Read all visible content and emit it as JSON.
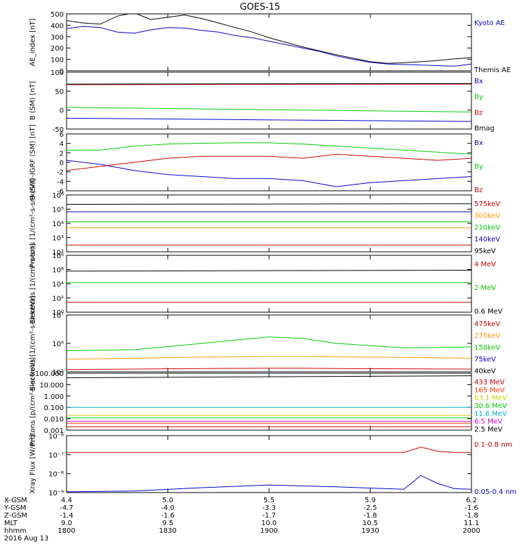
{
  "title": "GOES-15",
  "footer": {
    "rows": [
      {
        "label": "X-GSM",
        "values": [
          "4.4",
          "5.0",
          "5.5",
          "5.9",
          "6.2"
        ]
      },
      {
        "label": "Y-GSM",
        "values": [
          "-4.7",
          "-4.0",
          "-3.3",
          "-2.5",
          "-1.6"
        ]
      },
      {
        "label": "Z-GSM",
        "values": [
          "-1.4",
          "-1.6",
          "-1.7",
          "-1.8",
          "-1.8"
        ]
      },
      {
        "label": "MLT",
        "values": [
          "9.0",
          "9.5",
          "10.0",
          "10.5",
          "11.1"
        ]
      },
      {
        "label": "hhmm",
        "values": [
          "1800",
          "1830",
          "1900",
          "1930",
          "2000"
        ]
      }
    ],
    "date": "2016 Aug 13"
  },
  "chart_data": [
    {
      "type": "line",
      "ylabel": "AE_index [nT]",
      "ylim": [
        0,
        500
      ],
      "yticks": [
        "0",
        "100",
        "200",
        "300",
        "400",
        "500"
      ],
      "x": [
        0,
        5,
        10,
        15,
        20,
        25,
        30,
        35,
        40,
        45,
        50,
        55,
        60,
        65,
        70,
        75,
        80,
        85,
        90,
        95,
        100,
        105,
        110,
        115,
        120
      ],
      "series": [
        {
          "name": "Kyoto AE",
          "color": "#0000cc",
          "values": [
            370,
            390,
            380,
            340,
            330,
            360,
            380,
            375,
            355,
            340,
            310,
            290,
            260,
            230,
            200,
            170,
            130,
            100,
            75,
            60,
            55,
            50,
            45,
            40,
            60
          ]
        },
        {
          "name": "Themis AE",
          "color": "#000000",
          "values": [
            440,
            420,
            410,
            480,
            510,
            450,
            470,
            490,
            460,
            420,
            380,
            340,
            290,
            250,
            210,
            175,
            140,
            110,
            80,
            65,
            70,
            80,
            90,
            105,
            115
          ]
        }
      ]
    },
    {
      "type": "line",
      "ylabel": "B (SM) [nT]",
      "ylim": [
        -60,
        150
      ],
      "yticks": [
        "-50",
        "0",
        "50",
        "100"
      ],
      "x": [
        0,
        120
      ],
      "series": [
        {
          "name": "Bx",
          "color": "#0000cc",
          "values": [
            -20,
            -32
          ]
        },
        {
          "name": "By",
          "color": "#00cc00",
          "values": [
            20,
            3
          ]
        },
        {
          "name": "Bz",
          "color": "#cc0000",
          "values": [
            104,
            106
          ]
        },
        {
          "name": "Bmag",
          "color": "#000000",
          "values": [
            106,
            108
          ]
        }
      ]
    },
    {
      "type": "line",
      "ylabel": "B (SM)-IGRF (SM) [nT]",
      "ylim": [
        -7,
        7
      ],
      "yticks": [
        "-6",
        "-4",
        "-2",
        "0",
        "2",
        "4",
        "6"
      ],
      "x": [
        0,
        10,
        20,
        30,
        40,
        50,
        60,
        70,
        80,
        90,
        100,
        110,
        120
      ],
      "series": [
        {
          "name": "Bx",
          "color": "#0000cc",
          "values": [
            0.5,
            -0.5,
            -2,
            -3,
            -3.5,
            -4,
            -4,
            -4.5,
            -6,
            -5,
            -4.5,
            -4,
            -3.5
          ]
        },
        {
          "name": "By",
          "color": "#00cc00",
          "values": [
            3,
            3,
            4,
            4.5,
            4.7,
            4.8,
            4.8,
            4.5,
            4,
            3.5,
            3,
            2.5,
            2
          ]
        },
        {
          "name": "Bz",
          "color": "#cc0000",
          "values": [
            -2,
            -1,
            0,
            1,
            1.5,
            1.5,
            1.5,
            1,
            2,
            1.5,
            1,
            0.5,
            1
          ]
        }
      ]
    },
    {
      "type": "line",
      "ylabel": "Protons [1/(cm²-s-sr-keV)]",
      "yscale": "log",
      "ylim": [
        100,
        1000000
      ],
      "yticks": [
        "10²",
        "10³",
        "10⁴",
        "10⁵",
        "10⁶"
      ],
      "x": [
        0,
        120
      ],
      "series": [
        {
          "name": "575keV",
          "color": "#cc0000",
          "values": [
            300,
            300
          ]
        },
        {
          "name": "300keV",
          "color": "#ff9900",
          "values": [
            5000,
            5000
          ]
        },
        {
          "name": "210keV",
          "color": "#00cc00",
          "values": [
            13000,
            13000
          ]
        },
        {
          "name": "140keV",
          "color": "#0000cc",
          "values": [
            65000,
            65000
          ]
        },
        {
          "name": "95keV",
          "color": "#000000",
          "values": [
            220000,
            240000
          ]
        }
      ]
    },
    {
      "type": "line",
      "ylabel": "Electrons [1/(cm²-s-sr)]",
      "yscale": "log",
      "ylim": [
        1,
        100000000
      ],
      "yticks": [
        "10⁰",
        "10²",
        "10⁴",
        "10⁶",
        "10⁸"
      ],
      "x": [
        0,
        120
      ],
      "series": [
        {
          "name": "4 MeV",
          "color": "#cc0000",
          "values": [
            25,
            25
          ]
        },
        {
          "name": "2 MeV",
          "color": "#00cc00",
          "values": [
            15000,
            15000
          ]
        },
        {
          "name": "0.6 MeV",
          "color": "#000000",
          "values": [
            600000,
            800000
          ]
        }
      ]
    },
    {
      "type": "line",
      "ylabel": "Electrons [1/(cm²-s-sr-keV)]",
      "yscale": "log",
      "ylim": [
        100000,
        10000000
      ],
      "yticks": [
        "10⁵",
        "10⁶",
        "10⁷"
      ],
      "x": [
        0,
        20,
        40,
        60,
        70,
        80,
        100,
        120
      ],
      "series": [
        {
          "name": "475keV",
          "color": "#cc0000",
          "values": [
            120000,
            125000,
            130000,
            135000,
            135000,
            130000,
            128000,
            125000
          ]
        },
        {
          "name": "275keV",
          "color": "#ff9900",
          "values": [
            280000,
            300000,
            330000,
            350000,
            350000,
            340000,
            320000,
            300000
          ]
        },
        {
          "name": "150keV",
          "color": "#00cc00",
          "values": [
            550000,
            600000,
            1000000,
            1700000,
            1500000,
            1000000,
            700000,
            750000
          ]
        },
        {
          "name": "75keV",
          "color": "#0000cc",
          "values": [
            100000,
            100000,
            100000,
            100000,
            100000,
            100000,
            100000,
            100000
          ]
        },
        {
          "name": "40keV",
          "color": "#000000",
          "values": [
            100000,
            100000,
            100000,
            100000,
            100000,
            100000,
            100000,
            100000
          ]
        }
      ]
    },
    {
      "type": "line",
      "ylabel": "Protons [p/(cm²-s-sr-keV)]",
      "yscale": "log",
      "ylim": [
        0.001,
        100
      ],
      "yticks": [
        "0.001",
        "0.010",
        "0.100",
        "1.000",
        "10.000",
        "100.000"
      ],
      "x": [
        0,
        120
      ],
      "series": [
        {
          "name": "433 MeV",
          "color": "#cc0000",
          "values": [
            0.002,
            0.002
          ]
        },
        {
          "name": "165 MeV",
          "color": "#ff3300",
          "values": [
            0.004,
            0.004
          ]
        },
        {
          "name": "63.1 MeV",
          "color": "#cccc00",
          "values": [
            0.02,
            0.02
          ]
        },
        {
          "name": "30.6 MeV",
          "color": "#00cc00",
          "values": [
            0.012,
            0.012
          ]
        },
        {
          "name": "11.6 MeV",
          "color": "#00aacc",
          "values": [
            0.1,
            0.1
          ]
        },
        {
          "name": "6.5 MeV",
          "color": "#cc00cc",
          "values": [
            0.006,
            0.006
          ]
        },
        {
          "name": "2.5 MeV",
          "color": "#000000",
          "values": [
            40,
            60
          ]
        }
      ]
    },
    {
      "type": "line",
      "ylabel": "Xray Flux [W/m²]",
      "yscale": "log",
      "ylim": [
        1e-09,
        1e-06
      ],
      "yticks": [
        "10⁻⁹",
        "10⁻⁸",
        "10⁻⁷",
        "10⁻⁶"
      ],
      "x": [
        0,
        20,
        40,
        60,
        80,
        100,
        105,
        110,
        115,
        120
      ],
      "series": [
        {
          "name": "0.1-0.8 nm",
          "color": "#cc0000",
          "values": [
            1.3e-07,
            1.3e-07,
            1.3e-07,
            1.3e-07,
            1.3e-07,
            1.3e-07,
            2.5e-07,
            1.5e-07,
            1.3e-07,
            1.3e-07
          ]
        },
        {
          "name": "0.05-0.4 nm",
          "color": "#0000cc",
          "values": [
            1.1e-09,
            1.2e-09,
            1.8e-09,
            2.5e-09,
            2e-09,
            1.5e-09,
            8e-09,
            3e-09,
            1.6e-09,
            1.5e-09
          ]
        }
      ]
    }
  ]
}
